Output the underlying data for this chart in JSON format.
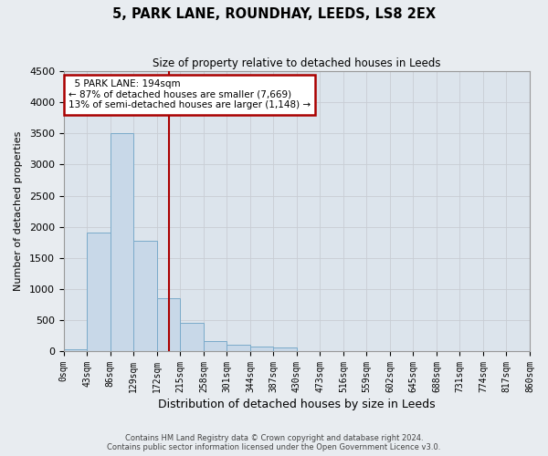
{
  "title": "5, PARK LANE, ROUNDHAY, LEEDS, LS8 2EX",
  "subtitle": "Size of property relative to detached houses in Leeds",
  "xlabel": "Distribution of detached houses by size in Leeds",
  "ylabel": "Number of detached properties",
  "footer_line1": "Contains HM Land Registry data © Crown copyright and database right 2024.",
  "footer_line2": "Contains public sector information licensed under the Open Government Licence v3.0.",
  "bin_edges": [
    0,
    43,
    86,
    129,
    172,
    215,
    258,
    301,
    344,
    387,
    430,
    473,
    516,
    559,
    602,
    645,
    688,
    731,
    774,
    817,
    860
  ],
  "bin_labels": [
    "0sqm",
    "43sqm",
    "86sqm",
    "129sqm",
    "172sqm",
    "215sqm",
    "258sqm",
    "301sqm",
    "344sqm",
    "387sqm",
    "430sqm",
    "473sqm",
    "516sqm",
    "559sqm",
    "602sqm",
    "645sqm",
    "688sqm",
    "731sqm",
    "774sqm",
    "817sqm",
    "860sqm"
  ],
  "bar_heights": [
    30,
    1900,
    3500,
    1780,
    850,
    450,
    160,
    100,
    75,
    60,
    0,
    0,
    0,
    0,
    0,
    0,
    0,
    0,
    0,
    0
  ],
  "bar_color": "#c8d8e8",
  "bar_edgecolor": "#7aaaca",
  "property_size": 194,
  "property_label": "5 PARK LANE: 194sqm",
  "pct_smaller": 87,
  "count_smaller": 7669,
  "pct_larger": 13,
  "count_larger": 1148,
  "vline_color": "#aa0000",
  "annotation_box_color": "#aa0000",
  "ylim": [
    0,
    4500
  ],
  "yticks": [
    0,
    500,
    1000,
    1500,
    2000,
    2500,
    3000,
    3500,
    4000,
    4500
  ],
  "grid_color": "#c8cdd4",
  "background_color": "#e8ecf0",
  "plot_bg_color": "#dce4ec",
  "fig_bg_color": "#e8ecf0"
}
